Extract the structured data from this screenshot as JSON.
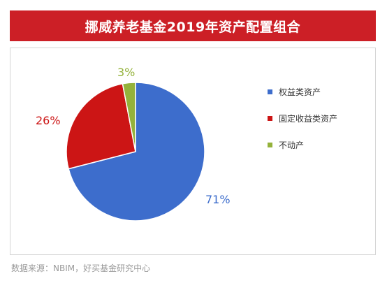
{
  "title": "挪威养老基金2019年资产配置组合",
  "source": "数据来源：NBIM，好买基金研究中心",
  "chart_data": {
    "type": "pie",
    "title": "挪威养老基金2019年资产配置组合",
    "slices": [
      {
        "label": "权益类资产",
        "value": 71,
        "display": "71%",
        "color": "#3d6dcc"
      },
      {
        "label": "固定收益类资产",
        "value": 26,
        "display": "26%",
        "color": "#cc1515"
      },
      {
        "label": "不动产",
        "value": 3,
        "display": "3%",
        "color": "#94b23b"
      }
    ],
    "legend_position": "right",
    "start_angle_deg": 0,
    "direction": "clockwise"
  }
}
